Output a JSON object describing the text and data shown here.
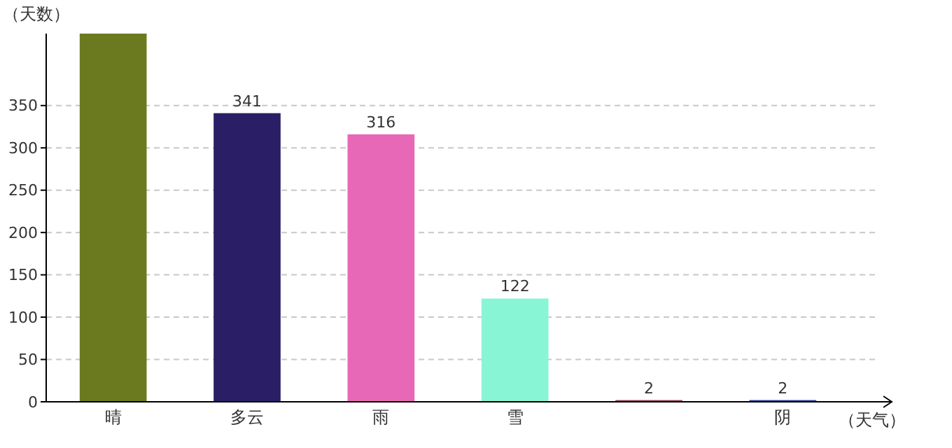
{
  "chart_data": {
    "type": "bar",
    "xlabel": "（天气）",
    "ylabel": "（天数）",
    "categories": [
      "晴",
      "多云",
      "雨",
      "雪",
      null,
      "阴"
    ],
    "values": [
      435,
      341,
      316,
      122,
      2,
      2
    ],
    "colors": [
      "#6b7a1f",
      "#2a1f66",
      "#e868b8",
      "#88f5d5",
      "#8b3a5a",
      "#1f3f8f"
    ],
    "value_labels": [
      null,
      "341",
      "316",
      "122",
      "2",
      "2"
    ],
    "ylim": [
      0,
      435
    ],
    "yticks": [
      0,
      50,
      100,
      150,
      200,
      250,
      300,
      350
    ],
    "grid": "y"
  }
}
